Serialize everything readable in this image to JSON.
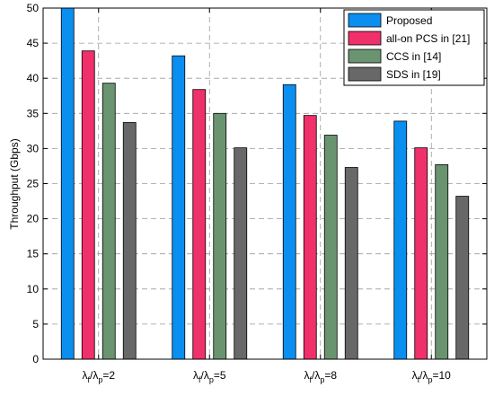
{
  "chart_data": {
    "type": "bar",
    "categories": [
      {
        "base": "λ",
        "sub1": "f",
        "mid": "/λ",
        "sub2": "p",
        "suffix": "=2"
      },
      {
        "base": "λ",
        "sub1": "f",
        "mid": "/λ",
        "sub2": "p",
        "suffix": "=5"
      },
      {
        "base": "λ",
        "sub1": "f",
        "mid": "/λ",
        "sub2": "p",
        "suffix": "=8"
      },
      {
        "base": "λ",
        "sub1": "f",
        "mid": "/λ",
        "sub2": "p",
        "suffix": "=10"
      }
    ],
    "series": [
      {
        "name": "Proposed",
        "color": "#0a8ff0",
        "values": [
          50.0,
          43.2,
          39.1,
          33.9
        ]
      },
      {
        "name": "all-on PCS in [21]",
        "color": "#f0306a",
        "values": [
          43.9,
          38.4,
          34.7,
          30.1
        ]
      },
      {
        "name": "CCS in [14]",
        "color": "#6a9470",
        "values": [
          39.3,
          35.0,
          31.9,
          27.7
        ]
      },
      {
        "name": "SDS in [19]",
        "color": "#686868",
        "values": [
          33.7,
          30.1,
          27.3,
          23.2
        ]
      }
    ],
    "ylabel": "Throughput (Gbps)",
    "xlabel": "",
    "ylim": [
      0,
      50
    ],
    "yticks": [
      "0",
      "5",
      "10",
      "15",
      "20",
      "25",
      "30",
      "35",
      "40",
      "45",
      "50"
    ],
    "grid": true,
    "legend_position": "top-right"
  }
}
